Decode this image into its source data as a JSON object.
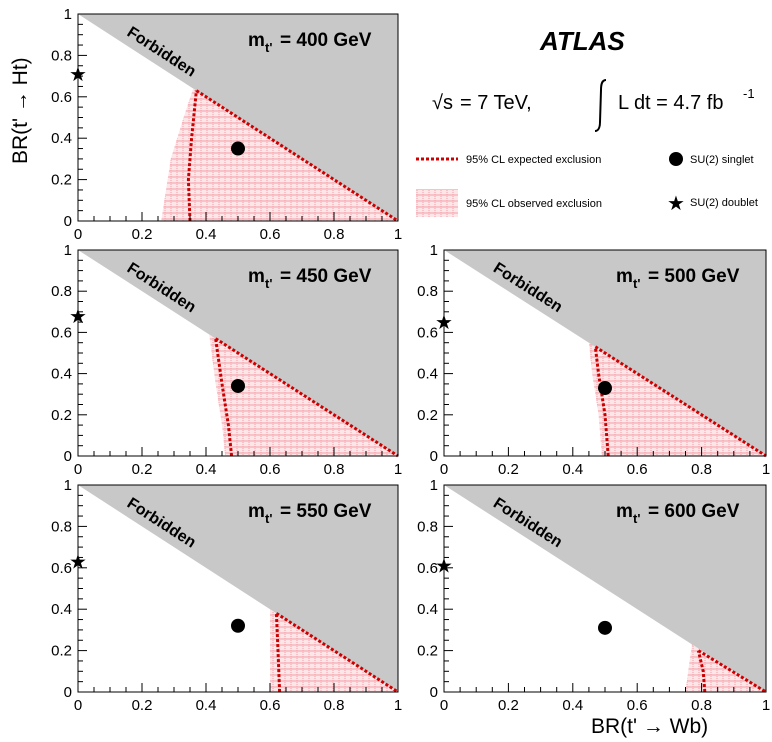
{
  "experiment": "ATLAS",
  "energy_label": "= 7 TeV,",
  "sqrt_s_symbol": "√s",
  "lumi_label": "L dt = 4.7 fb",
  "lumi_exponent": "-1",
  "forbidden_label": "Forbidden",
  "legend": {
    "expected": "95% CL expected exclusion",
    "observed": "95% CL observed exclusion",
    "singlet": "SU(2) singlet",
    "doublet": "SU(2) doublet"
  },
  "colors": {
    "forbidden": "#c8c8c8",
    "expected_line": "#cc0000",
    "observed_hatch": "#f2a0a8",
    "marker": "#000000"
  },
  "chart_data": {
    "type": "scatter",
    "xlabel": "BR(t' → Wb)",
    "ylabel": "BR(t' → Ht)",
    "xlim": [
      0,
      1
    ],
    "ylim": [
      0,
      1
    ],
    "xticks": [
      "0",
      "0.2",
      "0.4",
      "0.6",
      "0.8",
      "1"
    ],
    "yticks": [
      "0",
      "0.2",
      "0.4",
      "0.6",
      "0.8",
      "1"
    ],
    "panels": [
      {
        "mass_label": "= 400 GeV",
        "mass_value": 400,
        "singlet": [
          0.5,
          0.35
        ],
        "doublet": [
          0.0,
          0.71
        ],
        "expected_boundary": [
          [
            0.35,
            0.0
          ],
          [
            0.345,
            0.2
          ],
          [
            0.355,
            0.4
          ],
          [
            0.37,
            0.63
          ]
        ],
        "observed_boundary": [
          [
            0.26,
            0.0
          ],
          [
            0.29,
            0.3
          ],
          [
            0.33,
            0.5
          ],
          [
            0.36,
            0.64
          ]
        ]
      },
      {
        "mass_label": "= 450 GeV",
        "mass_value": 450,
        "singlet": [
          0.5,
          0.34
        ],
        "doublet": [
          0.0,
          0.68
        ],
        "expected_boundary": [
          [
            0.48,
            0.0
          ],
          [
            0.47,
            0.15
          ],
          [
            0.45,
            0.35
          ],
          [
            0.43,
            0.57
          ]
        ],
        "observed_boundary": [
          [
            0.46,
            0.0
          ],
          [
            0.45,
            0.15
          ],
          [
            0.43,
            0.35
          ],
          [
            0.41,
            0.59
          ]
        ]
      },
      {
        "mass_label": "= 500 GeV",
        "mass_value": 500,
        "singlet": [
          0.5,
          0.33
        ],
        "doublet": [
          0.0,
          0.65
        ],
        "expected_boundary": [
          [
            0.51,
            0.0
          ],
          [
            0.5,
            0.2
          ],
          [
            0.48,
            0.4
          ],
          [
            0.47,
            0.53
          ]
        ],
        "observed_boundary": [
          [
            0.49,
            0.0
          ],
          [
            0.48,
            0.2
          ],
          [
            0.46,
            0.4
          ],
          [
            0.45,
            0.55
          ]
        ]
      },
      {
        "mass_label": "= 550 GeV",
        "mass_value": 550,
        "singlet": [
          0.5,
          0.32
        ],
        "doublet": [
          0.0,
          0.63
        ],
        "expected_boundary": [
          [
            0.63,
            0.0
          ],
          [
            0.625,
            0.2
          ],
          [
            0.62,
            0.38
          ]
        ],
        "observed_boundary": [
          [
            0.6,
            0.0
          ],
          [
            0.6,
            0.2
          ],
          [
            0.6,
            0.4
          ]
        ]
      },
      {
        "mass_label": "= 600 GeV",
        "mass_value": 600,
        "singlet": [
          0.5,
          0.31
        ],
        "doublet": [
          0.0,
          0.61
        ],
        "expected_boundary": [
          [
            0.81,
            0.0
          ],
          [
            0.805,
            0.1
          ],
          [
            0.79,
            0.2
          ]
        ],
        "observed_boundary": [
          [
            0.75,
            0.0
          ],
          [
            0.76,
            0.12
          ],
          [
            0.77,
            0.23
          ]
        ]
      }
    ]
  }
}
